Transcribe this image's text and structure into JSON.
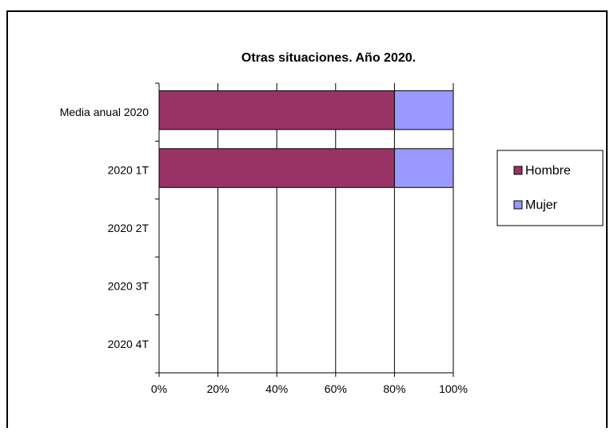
{
  "chart_data": {
    "type": "bar",
    "orientation": "horizontal",
    "stacked": "percent",
    "title": "Otras situaciones. Año 2020.",
    "categories": [
      "Media anual 2020",
      "2020 1T",
      "2020 2T",
      "2020 3T",
      "2020 4T"
    ],
    "series": [
      {
        "name": "Hombre",
        "color": "#993366",
        "values": [
          80,
          80,
          null,
          null,
          null
        ]
      },
      {
        "name": "Mujer",
        "color": "#9999ff",
        "values": [
          20,
          20,
          null,
          null,
          null
        ]
      }
    ],
    "xticks": [
      "0%",
      "20%",
      "40%",
      "60%",
      "80%",
      "100%"
    ],
    "xlim": [
      0,
      100
    ],
    "grid": "vertical",
    "legend": "right"
  }
}
